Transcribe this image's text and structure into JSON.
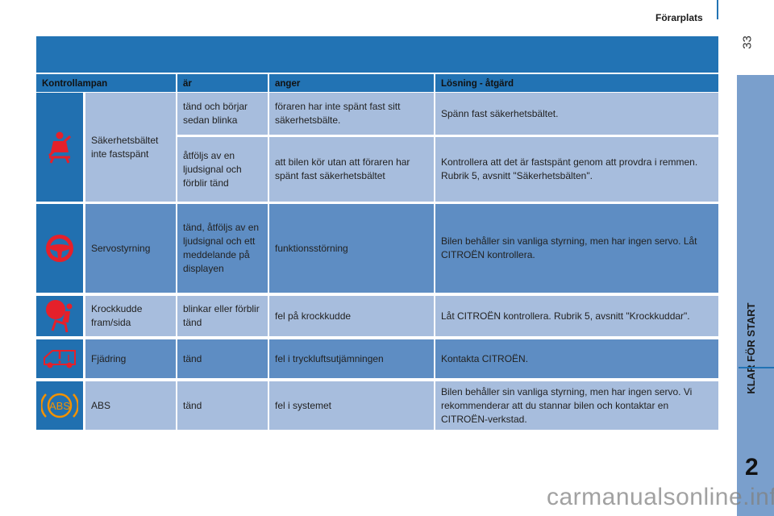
{
  "header": {
    "section": "Förarplats",
    "page_number": "33"
  },
  "sidebar": {
    "chapter_title": "KLAR FÖR START",
    "chapter_number": "2"
  },
  "table": {
    "columns": [
      "Kontrollampan",
      "är",
      "anger",
      "Lösning - åtgärd"
    ],
    "rows": [
      {
        "icon": "seatbelt-warning-icon",
        "icon_color": "#e5202a",
        "name": "Säkerhetsbältet inte fastspänt",
        "sub": [
          {
            "status": "tänd och börjar sedan blinka",
            "meaning": "föraren har inte spänt fast sitt säkerhetsbälte.",
            "solution": "Spänn fast säkerhetsbältet."
          },
          {
            "status": "åtföljs av en ljudsignal och förblir tänd",
            "meaning": "att bilen kör utan att föraren har spänt fast säkerhetsbältet",
            "solution": "Kontrollera att det är fastspänt genom att provdra i remmen. Rubrik 5, avsnitt \"Säkerhetsbälten\"."
          }
        ]
      },
      {
        "icon": "steering-wheel-icon",
        "icon_color": "#e5202a",
        "name": "Servostyrning",
        "status": "tänd, åtföljs av en ljudsignal och ett meddelande på displayen",
        "meaning": "funktionsstörning",
        "solution": "Bilen behåller sin vanliga styrning, men har ingen servo. Låt CITROËN kontrollera."
      },
      {
        "icon": "airbag-icon",
        "icon_color": "#e5202a",
        "name": "Krockkudde fram/sida",
        "status": "blinkar eller förblir tänd",
        "meaning": "fel på krockkudde",
        "solution": "Låt CITROËN kontrollera. Rubrik 5, avsnitt \"Krockkuddar\"."
      },
      {
        "icon": "suspension-van-icon",
        "icon_color": "#e5202a",
        "name": "Fjädring",
        "status": "tänd",
        "meaning": "fel i tryckluftsutjämningen",
        "solution": "Kontakta CITROËN."
      },
      {
        "icon": "abs-icon",
        "icon_color": "#f39200",
        "icon_text": "ABS",
        "name": "ABS",
        "status": "tänd",
        "meaning": "fel i systemet",
        "solution": "Bilen behåller sin vanliga styrning, men har ingen servo. Vi rekommenderar att du stannar bilen och kontaktar en CITROËN-verkstad."
      }
    ]
  },
  "watermark": "carmanualsonline.info"
}
